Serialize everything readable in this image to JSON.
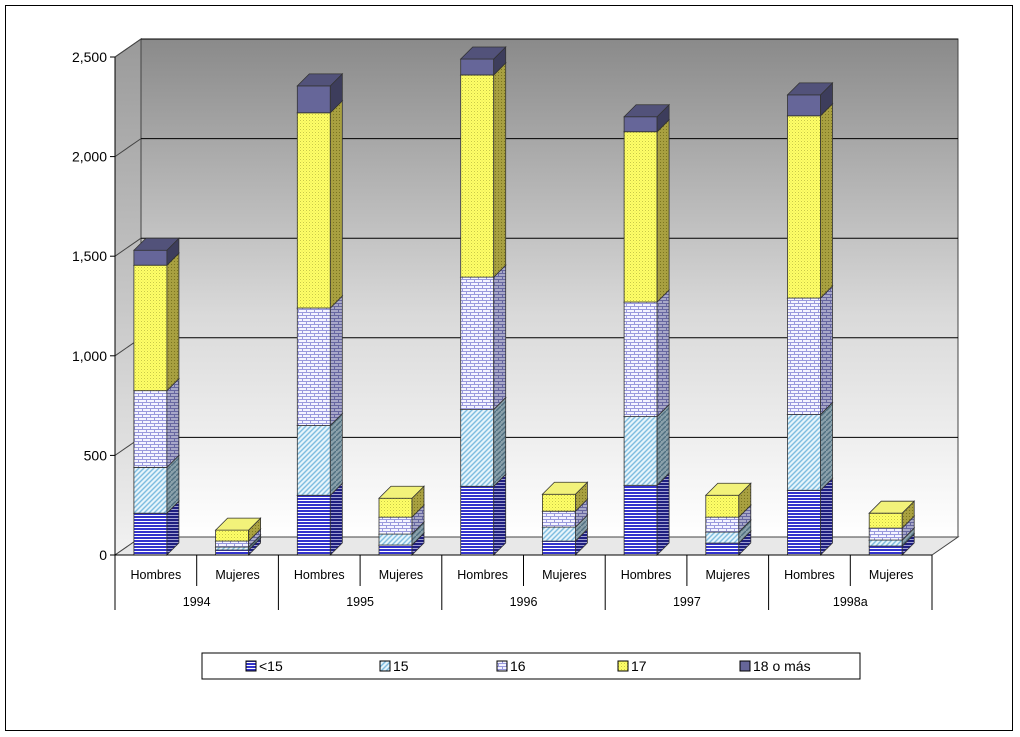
{
  "chart_data": {
    "type": "bar",
    "stacked": true,
    "three_d": true,
    "groups": [
      "1994",
      "1995",
      "1996",
      "1997",
      "1998a"
    ],
    "subcategories": [
      "Hombres",
      "Mujeres"
    ],
    "categories": [
      "Hombres",
      "Mujeres",
      "Hombres",
      "Mujeres",
      "Hombres",
      "Mujeres",
      "Hombres",
      "Mujeres",
      "Hombres",
      "Mujeres"
    ],
    "series": [
      {
        "name": "<15",
        "color": "#3333cc",
        "pattern": "horizontal-lines",
        "values": [
          210,
          25,
          300,
          50,
          345,
          70,
          350,
          60,
          325,
          45
        ]
      },
      {
        "name": "15",
        "color": "#99ccee",
        "pattern": "diagonal-lines",
        "values": [
          230,
          15,
          350,
          55,
          385,
          70,
          345,
          55,
          380,
          30
        ]
      },
      {
        "name": "16",
        "color": "#ccccff",
        "pattern": "brick",
        "values": [
          385,
          30,
          590,
          85,
          665,
          80,
          575,
          75,
          585,
          60
        ]
      },
      {
        "name": "17",
        "color": "#ffff66",
        "pattern": "dots",
        "values": [
          630,
          55,
          980,
          95,
          1015,
          85,
          855,
          110,
          915,
          75
        ]
      },
      {
        "name": "18 o más",
        "color": "#666699",
        "pattern": "solid",
        "values": [
          75,
          0,
          135,
          0,
          80,
          0,
          75,
          0,
          105,
          0
        ]
      }
    ],
    "yticks": [
      "0",
      "500",
      "1,000",
      "1,500",
      "2,000",
      "2,500"
    ],
    "ylim": [
      0,
      2500
    ],
    "grid": true,
    "legend_position": "bottom"
  }
}
